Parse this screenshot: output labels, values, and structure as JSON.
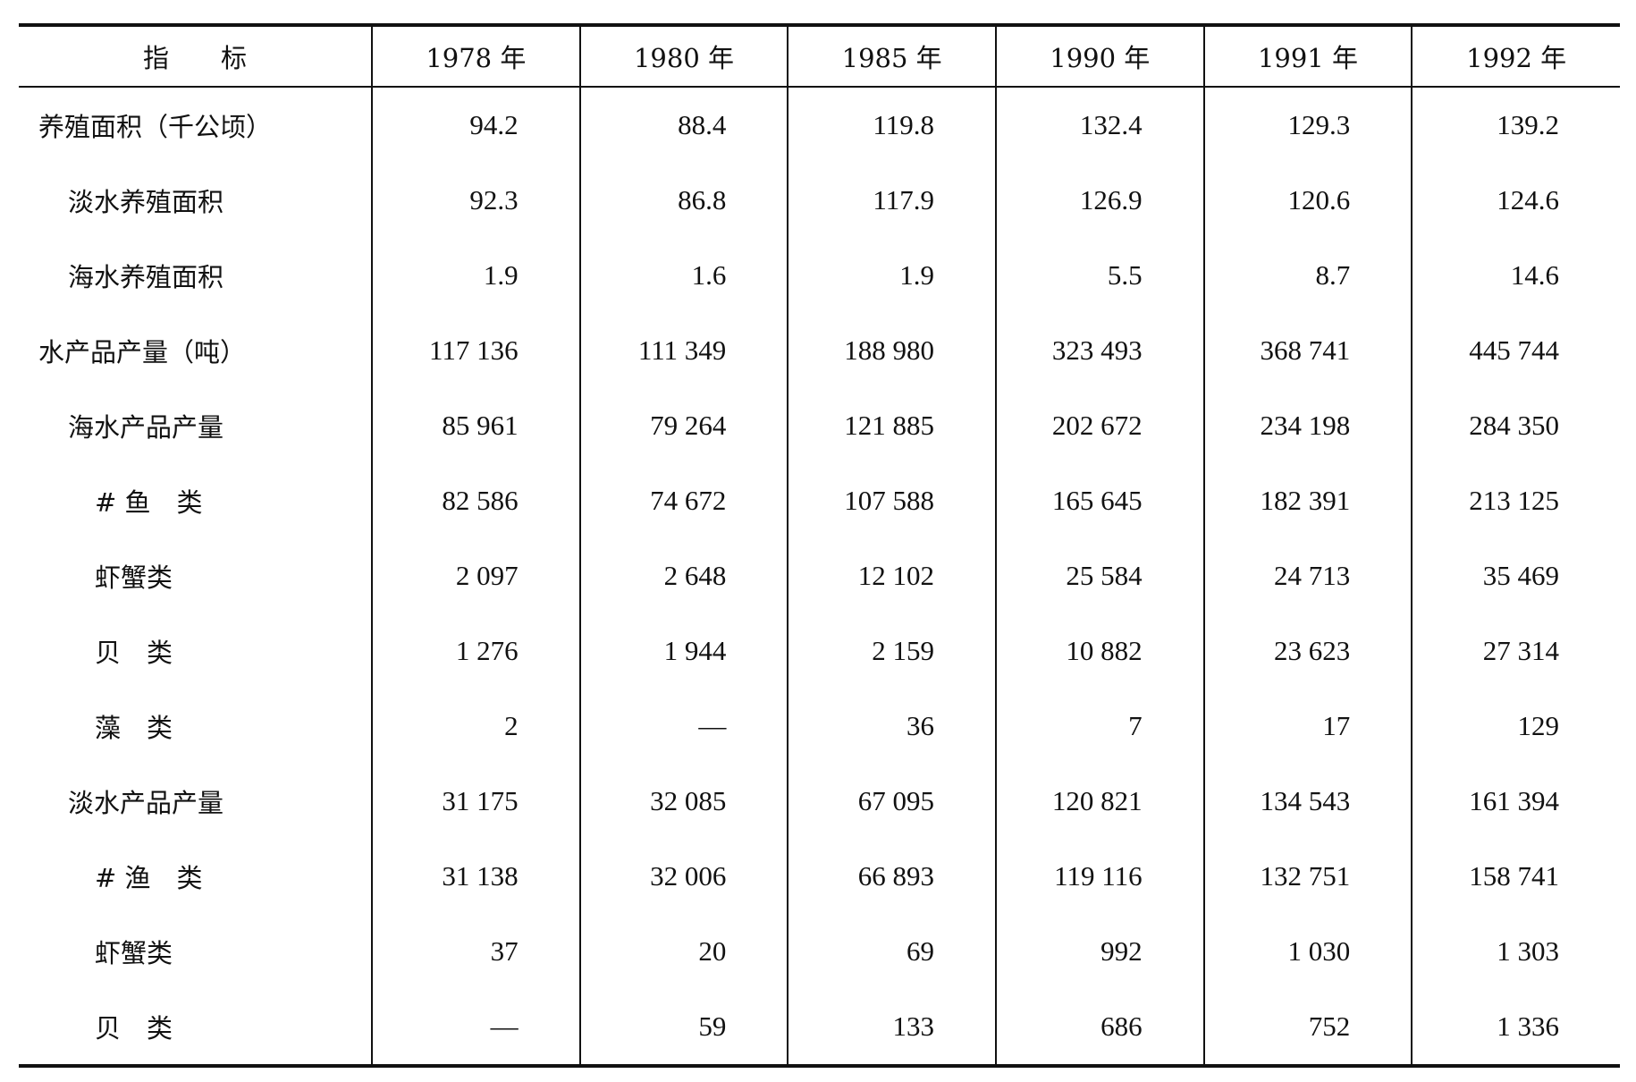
{
  "table": {
    "headers": [
      "指　　标",
      "1978 年",
      "1980 年",
      "1985 年",
      "1990 年",
      "1991 年",
      "1992 年"
    ],
    "rows": [
      {
        "label": "养殖面积（千公顷）",
        "level": 0,
        "values": [
          "94.2",
          "88.4",
          "119.8",
          "132.4",
          "129.3",
          "139.2"
        ]
      },
      {
        "label": "淡水养殖面积",
        "level": 1,
        "values": [
          "92.3",
          "86.8",
          "117.9",
          "126.9",
          "120.6",
          "124.6"
        ]
      },
      {
        "label": "海水养殖面积",
        "level": 1,
        "values": [
          "1.9",
          "1.6",
          "1.9",
          "5.5",
          "8.7",
          "14.6"
        ]
      },
      {
        "label": "水产品产量（吨）",
        "level": 0,
        "values": [
          "117 136",
          "111 349",
          "188 980",
          "323 493",
          "368 741",
          "445 744"
        ]
      },
      {
        "label": "海水产品产量",
        "level": 1,
        "values": [
          "85 961",
          "79 264",
          "121 885",
          "202 672",
          "234 198",
          "284 350"
        ]
      },
      {
        "label": "# 鱼　类",
        "level": 2,
        "values": [
          "82 586",
          "74 672",
          "107 588",
          "165 645",
          "182 391",
          "213 125"
        ]
      },
      {
        "label": "虾蟹类",
        "level": 2,
        "values": [
          "2 097",
          "2 648",
          "12 102",
          "25 584",
          "24 713",
          "35 469"
        ]
      },
      {
        "label": "贝　类",
        "level": 2,
        "values": [
          "1 276",
          "1 944",
          "2 159",
          "10 882",
          "23 623",
          "27 314"
        ]
      },
      {
        "label": "藻　类",
        "level": 2,
        "values": [
          "2",
          "—",
          "36",
          "7",
          "17",
          "129"
        ]
      },
      {
        "label": "淡水产品产量",
        "level": 1,
        "values": [
          "31 175",
          "32 085",
          "67 095",
          "120 821",
          "134 543",
          "161 394"
        ]
      },
      {
        "label": "# 渔　类",
        "level": 2,
        "values": [
          "31 138",
          "32 006",
          "66 893",
          "119 116",
          "132 751",
          "158 741"
        ]
      },
      {
        "label": "虾蟹类",
        "level": 2,
        "values": [
          "37",
          "20",
          "69",
          "992",
          "1 030",
          "1 303"
        ]
      },
      {
        "label": "贝　类",
        "level": 2,
        "values": [
          "—",
          "59",
          "133",
          "686",
          "752",
          "1 336"
        ]
      }
    ]
  }
}
